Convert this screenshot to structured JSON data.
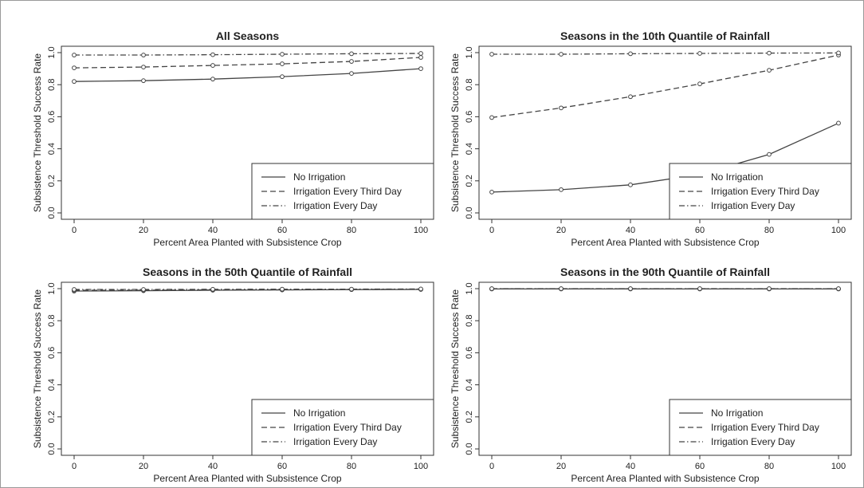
{
  "chart_data": [
    {
      "type": "line",
      "title": "All Seasons",
      "xlabel": "Percent Area Planted with Subsistence Crop",
      "ylabel": "Subsistence Threshold Success Rate",
      "x": [
        0,
        20,
        40,
        60,
        80,
        100
      ],
      "xlim": [
        0,
        100
      ],
      "ylim": [
        0,
        1
      ],
      "xticks": [
        "0",
        "20",
        "40",
        "60",
        "80",
        "100"
      ],
      "yticks": [
        "0.0",
        "0.2",
        "0.4",
        "0.6",
        "0.8",
        "1.0"
      ],
      "legend_position": "bottom-right",
      "series": [
        {
          "name": "No Irrigation",
          "style": "solid",
          "values": [
            0.82,
            0.825,
            0.835,
            0.85,
            0.87,
            0.9
          ]
        },
        {
          "name": "Irrigation Every Third Day",
          "style": "dashed",
          "values": [
            0.905,
            0.91,
            0.92,
            0.93,
            0.945,
            0.97
          ]
        },
        {
          "name": "Irrigation Every Day",
          "style": "dashdot",
          "values": [
            0.985,
            0.985,
            0.987,
            0.99,
            0.993,
            0.995
          ]
        }
      ]
    },
    {
      "type": "line",
      "title": "Seasons in the 10th Quantile of Rainfall",
      "xlabel": "Percent Area Planted with Subsistence Crop",
      "ylabel": "Subsistence Threshold Success Rate",
      "x": [
        0,
        20,
        40,
        60,
        80,
        100
      ],
      "xlim": [
        0,
        100
      ],
      "ylim": [
        0,
        1
      ],
      "xticks": [
        "0",
        "20",
        "40",
        "60",
        "80",
        "100"
      ],
      "yticks": [
        "0.0",
        "0.2",
        "0.4",
        "0.6",
        "0.8",
        "1.0"
      ],
      "legend_position": "bottom-right",
      "series": [
        {
          "name": "No Irrigation",
          "style": "solid",
          "values": [
            0.13,
            0.145,
            0.175,
            0.24,
            0.365,
            0.56
          ]
        },
        {
          "name": "Irrigation Every Third Day",
          "style": "dashed",
          "values": [
            0.595,
            0.655,
            0.725,
            0.805,
            0.89,
            0.985
          ]
        },
        {
          "name": "Irrigation Every Day",
          "style": "dashdot",
          "values": [
            0.99,
            0.99,
            0.993,
            0.995,
            0.997,
            0.998
          ]
        }
      ]
    },
    {
      "type": "line",
      "title": "Seasons in the 50th Quantile of Rainfall",
      "xlabel": "Percent Area Planted with Subsistence Crop",
      "ylabel": "Subsistence Threshold Success Rate",
      "x": [
        0,
        20,
        40,
        60,
        80,
        100
      ],
      "xlim": [
        0,
        100
      ],
      "ylim": [
        0,
        1
      ],
      "xticks": [
        "0",
        "20",
        "40",
        "60",
        "80",
        "100"
      ],
      "yticks": [
        "0.0",
        "0.2",
        "0.4",
        "0.6",
        "0.8",
        "1.0"
      ],
      "legend_position": "bottom-right",
      "series": [
        {
          "name": "No Irrigation",
          "style": "solid",
          "values": [
            0.985,
            0.987,
            0.99,
            0.992,
            0.994,
            0.995
          ]
        },
        {
          "name": "Irrigation Every Third Day",
          "style": "dashed",
          "values": [
            0.99,
            0.99,
            0.992,
            0.993,
            0.995,
            0.996
          ]
        },
        {
          "name": "Irrigation Every Day",
          "style": "dashdot",
          "values": [
            0.995,
            0.995,
            0.996,
            0.997,
            0.997,
            0.998
          ]
        }
      ]
    },
    {
      "type": "line",
      "title": "Seasons in the 90th Quantile of Rainfall",
      "xlabel": "Percent Area Planted with Subsistence Crop",
      "ylabel": "Subsistence Threshold Success Rate",
      "x": [
        0,
        20,
        40,
        60,
        80,
        100
      ],
      "xlim": [
        0,
        100
      ],
      "ylim": [
        0,
        1
      ],
      "xticks": [
        "0",
        "20",
        "40",
        "60",
        "80",
        "100"
      ],
      "yticks": [
        "0.0",
        "0.2",
        "0.4",
        "0.6",
        "0.8",
        "1.0"
      ],
      "legend_position": "bottom-right",
      "series": [
        {
          "name": "No Irrigation",
          "style": "solid",
          "values": [
            0.998,
            0.998,
            0.998,
            0.998,
            0.998,
            0.998
          ]
        },
        {
          "name": "Irrigation Every Third Day",
          "style": "dashed",
          "values": [
            0.999,
            0.999,
            0.999,
            0.999,
            0.999,
            0.999
          ]
        },
        {
          "name": "Irrigation Every Day",
          "style": "dashdot",
          "values": [
            1.0,
            1.0,
            1.0,
            1.0,
            1.0,
            1.0
          ]
        }
      ]
    }
  ]
}
